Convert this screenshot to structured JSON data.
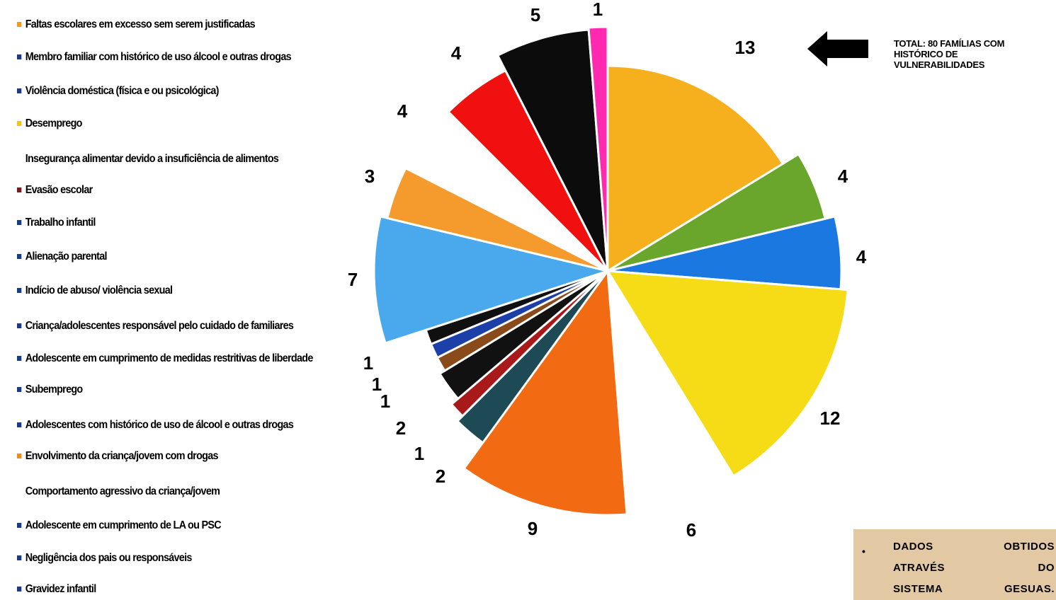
{
  "chart_data": {
    "type": "pie",
    "categories": [
      "Faltas escolares em excesso sem serem justificadas",
      "Membro familiar com histórico de uso álcool e outras drogas",
      "Violência doméstica (física e ou psicológica)",
      "Desemprego",
      "Insegurança alimentar devido a insuficiência de alimentos",
      "Evasão escolar",
      "Trabalho infantil",
      "Alienação parental",
      "Indício de abuso/ violência sexual",
      "Criança/adolescentes responsável pelo cuidado de familiares",
      "Adolescente em cumprimento de medidas restritivas de liberdade",
      "Subemprego",
      "Adolescentes com histórico de uso de álcool e outras drogas",
      "Envolvimento da criança/jovem com drogas",
      "Comportamento agressivo da criança/jovem",
      "Adolescente em cumprimento de LA ou PSC",
      "Negligência dos pais ou responsáveis",
      "Gravidez infantil"
    ],
    "values": [
      13,
      4,
      4,
      12,
      6,
      9,
      2,
      1,
      2,
      1,
      1,
      1,
      7,
      3,
      4,
      4,
      5,
      1
    ],
    "slice_colors": [
      "#f6b01e",
      "#6aa62c",
      "#1a78e0",
      "#f5dc16",
      "#ffffff",
      "#f26a12",
      "#1e4a55",
      "#a81a1a",
      "#111111",
      "#8a4a1a",
      "#1c3fa8",
      "#101010",
      "#4aa8ec",
      "#f59a2c",
      "#ffffff",
      "#f01010",
      "#0c0c0c",
      "#ff2ab0"
    ],
    "legend_colors": [
      "#f39a1a",
      "#1a3a8a",
      "#1a3a8a",
      "#f6c40c",
      "#ffffff",
      "#7a1a1a",
      "#1a3a8a",
      "#1a3a8a",
      "#1a3a8a",
      "#1a3a8a",
      "#1a3a8a",
      "#1a3a8a",
      "#1a3a8a",
      "#f08a1a",
      "#ffffff",
      "#1a3a8a",
      "#1a3a8a",
      "#1a3a8a"
    ],
    "value_labels": [
      "13",
      "4",
      "4",
      "12",
      "6",
      "9",
      "2",
      "1",
      "2",
      "1",
      "1",
      "1",
      "7",
      "3",
      "4",
      "4",
      "5",
      "1"
    ],
    "legend_position": "left",
    "title": ""
  },
  "note": {
    "total_lines": [
      "TOTAL: 80 FAMÍLIAS COM",
      "HISTÓRICO DE",
      "VULNERABILIDADES"
    ]
  },
  "source": {
    "bullet": "•",
    "lines": [
      "DADOS OBTIDOS",
      "ATRAVÉS DO",
      "SISTEMA GESUAS."
    ]
  }
}
